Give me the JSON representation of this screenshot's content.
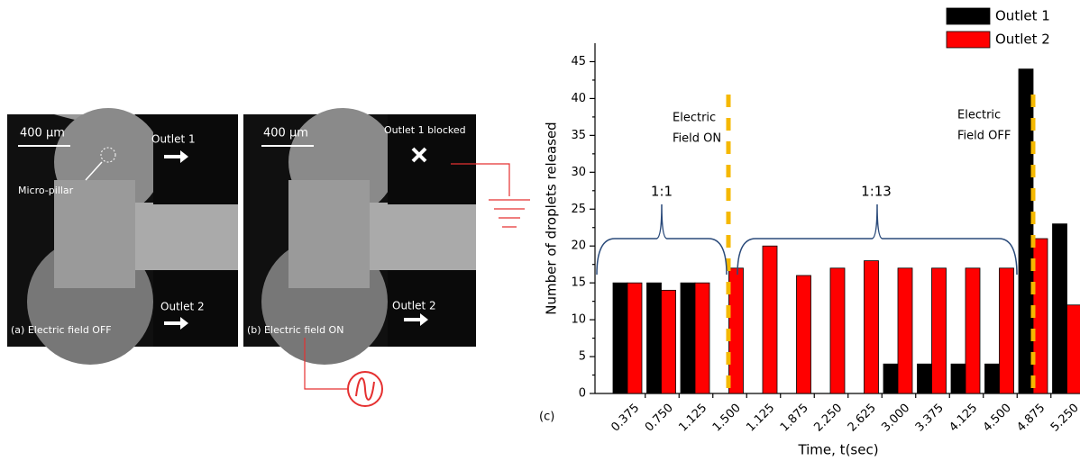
{
  "figure": {
    "panel_a": {
      "scale": "400 µm",
      "outlet1": "Outlet 1",
      "pillar": "Micro-pillar",
      "outlet2": "Outlet 2",
      "caption": "(a) Electric field OFF"
    },
    "panel_b": {
      "scale": "400 µm",
      "outlet1": "Outlet 1 blocked",
      "outlet2": "Outlet 2",
      "caption": "(b) Electric field ON"
    }
  },
  "chart_data": {
    "type": "bar",
    "panel_label": "(c)",
    "x_label": "Time, t(sec)",
    "y_label": "Number of droplets released",
    "categories": [
      "0.375",
      "0.750",
      "1.125",
      "1.500",
      "1.125",
      "1.875",
      "2.250",
      "2.625",
      "3.000",
      "3.375",
      "4.125",
      "4.500",
      "4.875",
      "5.250"
    ],
    "series": [
      {
        "name": "Outlet 1",
        "color": "#000000",
        "values": [
          15,
          15,
          15,
          null,
          null,
          null,
          null,
          null,
          4,
          4,
          4,
          4,
          44,
          23
        ]
      },
      {
        "name": "Outlet 2",
        "color": "#ff0000",
        "values": [
          15,
          14,
          15,
          17,
          20,
          16,
          17,
          18,
          17,
          17,
          17,
          17,
          21,
          12
        ]
      }
    ],
    "ylim": [
      0,
      47.5
    ],
    "yticks": [
      0,
      5,
      10,
      15,
      20,
      25,
      30,
      35,
      40,
      45
    ],
    "annotations": {
      "field_on": [
        "Electric",
        "Field ON"
      ],
      "field_off": [
        "Electric",
        "Field OFF"
      ],
      "ratio_1": "1:1",
      "ratio_2": "1:13"
    },
    "legend": "top-right"
  }
}
